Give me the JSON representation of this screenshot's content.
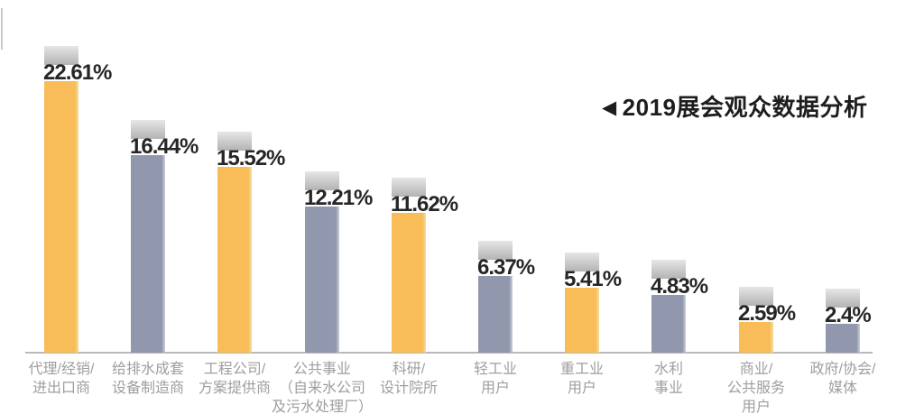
{
  "title": {
    "marker": "◀",
    "text": "2019展会观众数据分析"
  },
  "chart_data": {
    "type": "bar",
    "orientation": "vertical",
    "title": "2019展会观众数据分析",
    "unit": "%",
    "grid": false,
    "legend": null,
    "ylim": [
      0,
      25
    ],
    "categories": [
      "代理/经销/进出口商",
      "给排水成套设备制造商",
      "工程公司/方案提供商",
      "公共事业（自来水公司及污水处理厂）",
      "科研/设计院所",
      "轻工业用户",
      "重工业用户",
      "水利事业",
      "商业/公共服务用户",
      "政府/协会/媒体"
    ],
    "category_lines": [
      [
        "代理/经销/",
        "进出口商"
      ],
      [
        "给排水成套",
        "设备制造商"
      ],
      [
        "工程公司/",
        "方案提供商"
      ],
      [
        "公共事业",
        "（自来水公司",
        "及污水处理厂）"
      ],
      [
        "科研/",
        "设计院所"
      ],
      [
        "轻工业",
        "用户"
      ],
      [
        "重工业",
        "用户"
      ],
      [
        "水利",
        "事业"
      ],
      [
        "商业/",
        "公共服务",
        "用户"
      ],
      [
        "政府/协会/",
        "媒体"
      ]
    ],
    "values": [
      22.61,
      16.44,
      15.52,
      12.21,
      11.62,
      6.37,
      5.41,
      4.83,
      2.59,
      2.4
    ],
    "value_labels": [
      "22.61%",
      "16.44%",
      "15.52%",
      "12.21%",
      "11.62%",
      "6.37%",
      "5.41%",
      "4.83%",
      "2.59%",
      "2.4%"
    ],
    "bar_color_pattern": [
      "#F8BD58",
      "#9197AD"
    ],
    "bar_edge_pattern": [
      "#F2DFA8",
      "#CDD0DC"
    ]
  },
  "colors": {
    "background": "#FFFFFF",
    "bar_yellow": "#F8BD58",
    "bar_blue_gray": "#9197AD",
    "cap_top": "#E6E6E6",
    "cap_bottom": "#B3B3B3",
    "value_text": "#262626",
    "title_text": "#1D1D1D",
    "axis_line": "#B9B9B9",
    "category_text": "#9E9E9E"
  }
}
